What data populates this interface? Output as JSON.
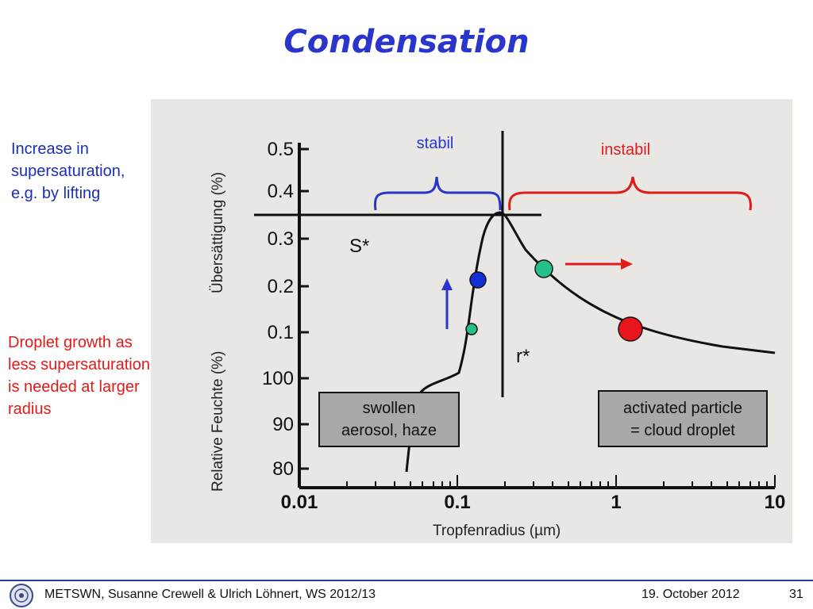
{
  "slide": {
    "title": "Condensation",
    "note_lifting": [
      "Increase in",
      "supersaturation,",
      "e.g. by lifting"
    ],
    "note_growth": [
      "Droplet growth as",
      "less supersaturation",
      "is needed at larger",
      "radius"
    ]
  },
  "figure": {
    "y_label_upper": "Übersättigung (%)",
    "y_label_lower": "Relative Feuchte (%)",
    "x_label": "Tropfenradius (µm)",
    "y_ticks_upper": [
      "0.5",
      "0.4",
      "0.3",
      "0.2",
      "0.1"
    ],
    "y_ticks_lower": [
      "100",
      "90",
      "80"
    ],
    "x_ticks": [
      "0.01",
      "0.1",
      "1",
      "10"
    ],
    "label_stabil": "stabil",
    "label_instabil": "instabil",
    "label_s_star": "S*",
    "label_r_star": "r*",
    "box_swollen": [
      "swollen",
      "aerosol, haze"
    ],
    "box_activated": [
      "activated particle",
      "= cloud droplet"
    ],
    "colors": {
      "stabil": "#2a35cc",
      "instabil": "#e11a1a",
      "dot_blue": "#1230d8",
      "dot_green": "#22c08a",
      "dot_red": "#e8151d"
    }
  },
  "footer": {
    "credit": "METSWN, Susanne Crewell & Ulrich Löhnert,  WS 2012/13",
    "date": "19. October 2012",
    "page": "31"
  }
}
